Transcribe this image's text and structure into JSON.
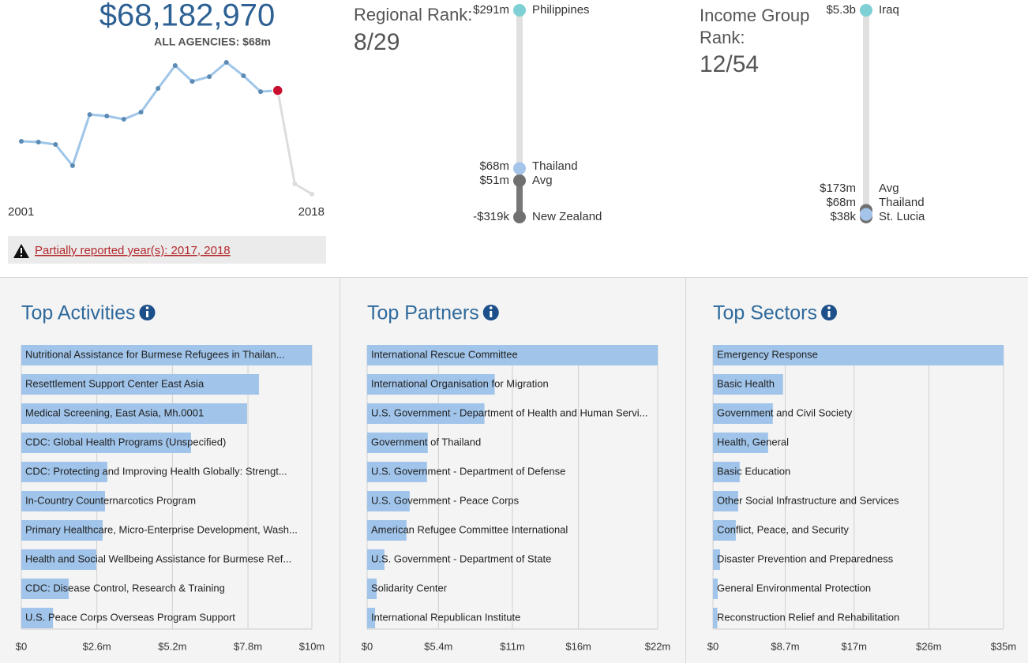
{
  "summary": {
    "total": "$68,182,970",
    "all_agencies": "ALL AGENCIES: $68m"
  },
  "warning": "Partially reported year(s): 2017, 2018",
  "chart_data": [
    {
      "type": "line",
      "x": [
        2001,
        2002,
        2003,
        2004,
        2005,
        2006,
        2007,
        2008,
        2009,
        2010,
        2011,
        2012,
        2013,
        2014,
        2015,
        2016,
        2017,
        2018
      ],
      "values": [
        38.0,
        37.5,
        36.1,
        23.5,
        53.9,
        53.0,
        51.1,
        55.3,
        69.4,
        83.0,
        73.6,
        76.4,
        84.9,
        76.9,
        67.5,
        68.2,
        12.7,
        6.6
      ],
      "color": "#9fc5e8",
      "partial_color": "#dddddd",
      "point_colors": [
        "#5b8bb5",
        "#5b8bb5",
        "#5b8bb5",
        "#5b8bb5",
        "#5b8bb5",
        "#5b8bb5",
        "#5b8bb5",
        "#5b8bb5",
        "#5b8bb5",
        "#5b8bb5",
        "#5b8bb5",
        "#5b8bb5",
        "#5b8bb5",
        "#5b8bb5",
        "#5b8bb5",
        "#c8102e",
        "#dddddd",
        "#dddddd"
      ]
    },
    {
      "type": "rank",
      "title": "Regional Rank:",
      "rank": "8/29",
      "names": [
        "Philippines",
        "Thailand",
        "Avg",
        "New Zealand"
      ],
      "values": [
        291000000,
        68182970,
        51000000,
        -319000
      ],
      "value_labels": [
        "$291m",
        "$68m",
        "$51m",
        "-$319k"
      ],
      "colors": [
        "#7fd0d4",
        "#a4c4ea",
        "#707070",
        "#707070"
      ]
    },
    {
      "type": "rank",
      "title": "Income Group Rank:",
      "rank": "12/54",
      "names": [
        "Iraq",
        "Avg",
        "Thailand",
        "St. Lucia"
      ],
      "values": [
        5300000000,
        173000000,
        68182970,
        38000
      ],
      "value_labels": [
        "$5.3b",
        "$173m",
        "$68m",
        "$38k"
      ],
      "colors": [
        "#7fd0d4",
        "#707070",
        "#a4c4ea",
        "#707070"
      ]
    },
    {
      "type": "hbar",
      "title": "Top Activities",
      "color": "#a0c4ea",
      "categories": [
        "Nutritional Assistance for Burmese Refugees in Thailan...",
        "Resettlement Support Center East Asia",
        "Medical Screening, East Asia, Mh.0001",
        "CDC: Global Health Programs (Unspecified)",
        "CDC: Protecting and Improving Health Globally: Strengt...",
        "In-Country Counternarcotics Program",
        "Primary Healthcare, Micro-Enterprise Development, Wash...",
        "Health and Social Wellbeing Assistance for Burmese Ref...",
        "CDC: Disease Control, Research & Training",
        "U.S. Peace Corps Overseas Program Support"
      ],
      "values": [
        10.0,
        8.18,
        7.77,
        5.84,
        2.96,
        2.88,
        2.8,
        2.58,
        1.63,
        1.09
      ],
      "xlim": [
        0,
        10
      ],
      "xticks": [
        {
          "value": 0,
          "label": "$0"
        },
        {
          "value": 2.6,
          "label": "$2.6m"
        },
        {
          "value": 5.2,
          "label": "$5.2m"
        },
        {
          "value": 7.8,
          "label": "$7.8m"
        },
        {
          "value": 10,
          "label": "$10m"
        }
      ]
    },
    {
      "type": "hbar",
      "title": "Top Partners",
      "color": "#a0c4ea",
      "categories": [
        "International Rescue Committee",
        "International Organisation for Migration",
        "U.S. Government - Department of Health and Human Servi...",
        "Government of Thailand",
        "U.S. Government - Department of Defense",
        "U.S. Government - Peace Corps",
        "American Refugee Committee International",
        "U.S. Government - Department of State",
        "Solidarity Center",
        "International Republican Institute"
      ],
      "values": [
        22,
        9.66,
        8.88,
        4.59,
        4.53,
        3.22,
        2.98,
        1.31,
        0.72,
        0.6
      ],
      "xlim": [
        0,
        22
      ],
      "xticks": [
        {
          "value": 0,
          "label": "$0"
        },
        {
          "value": 5.4,
          "label": "$5.4m"
        },
        {
          "value": 11,
          "label": "$11m"
        },
        {
          "value": 16,
          "label": "$16m"
        },
        {
          "value": 22,
          "label": "$22m"
        }
      ]
    },
    {
      "type": "hbar",
      "title": "Top Sectors",
      "color": "#a0c4ea",
      "categories": [
        "Emergency Response",
        "Basic Health",
        "Government and Civil Society",
        "Health, General",
        "Basic Education",
        "Other Social Infrastructure and Services",
        "Conflict, Peace, and Security",
        "Disaster Prevention and Preparedness",
        "General Environmental Protection",
        "Reconstruction Relief and Rehabilitation"
      ],
      "values": [
        35,
        8.44,
        7.21,
        6.64,
        3.22,
        3.03,
        2.75,
        0.85,
        0.57,
        0.52
      ],
      "xlim": [
        0,
        35
      ],
      "xticks": [
        {
          "value": 0,
          "label": "$0"
        },
        {
          "value": 8.7,
          "label": "$8.7m"
        },
        {
          "value": 17,
          "label": "$17m"
        },
        {
          "value": 26,
          "label": "$26m"
        },
        {
          "value": 35,
          "label": "$35m"
        }
      ]
    }
  ]
}
